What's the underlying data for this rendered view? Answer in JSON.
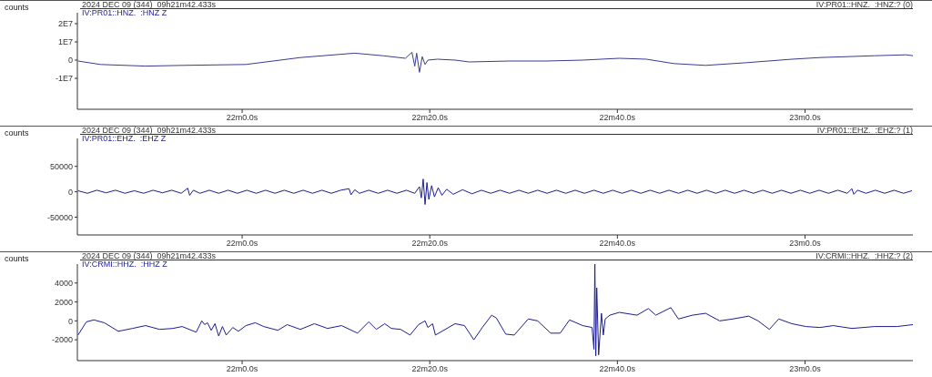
{
  "chart_data": [
    {
      "type": "line",
      "title": "2024 DEC 09 (344)  09h21m42.433s",
      "subtitle": "IV:PR01::HNZ.  :HNZ Z",
      "ylabel": "counts",
      "annotations": [
        "IV:PR01::HNZ.  :HNZ:? (0)"
      ],
      "line_style": "solid",
      "xlim": [
        "2024-12-09T09:21:42.433",
        "2024-12-09T09:23:11.5"
      ],
      "xticks": [
        {
          "value": "2024-12-09T09:22:00",
          "label": "22m0.0s"
        },
        {
          "value": "2024-12-09T09:22:20",
          "label": "22m20.0s"
        },
        {
          "value": "2024-12-09T09:22:40",
          "label": "22m40.0s"
        },
        {
          "value": "2024-12-09T09:23:00",
          "label": "23m0.0s"
        }
      ],
      "ylim": [
        -27000000,
        26000000
      ],
      "yticks": [
        {
          "value": 20000000,
          "label": "2E7"
        },
        {
          "value": 10000000,
          "label": "1E7"
        },
        0,
        {
          "value": -10000000,
          "label": "-1E7"
        }
      ],
      "x": [
        "2024-12-09T09:21:42.5",
        "2024-12-09T09:21:44.9",
        "2024-12-09T09:21:49.7",
        "2024-12-09T09:21:53.6",
        "2024-12-09T09:22:00.4",
        "2024-12-09T09:22:06.2",
        "2024-12-09T09:22:12.0",
        "2024-12-09T09:22:15.0",
        "2024-12-09T09:22:17.4",
        "2024-12-09T09:22:18.1",
        "2024-12-09T09:22:18.4",
        "2024-12-09T09:22:18.6",
        "2024-12-09T09:22:18.9",
        "2024-12-09T09:22:19.2",
        "2024-12-09T09:22:19.5",
        "2024-12-09T09:22:19.8",
        "2024-12-09T09:22:20.8",
        "2024-12-09T09:22:22.7",
        "2024-12-09T09:22:24.2",
        "2024-12-09T09:22:28.5",
        "2024-12-09T09:22:32.4",
        "2024-12-09T09:22:36.3",
        "2024-12-09T09:22:40.2",
        "2024-12-09T09:22:43.1",
        "2024-12-09T09:22:46.0",
        "2024-12-09T09:22:49.4",
        "2024-12-09T09:22:53.8",
        "2024-12-09T09:22:58.6",
        "2024-12-09T09:23:01.6",
        "2024-12-09T09:23:07.4",
        "2024-12-09T09:23:10.8",
        "2024-12-09T09:23:11.5"
      ],
      "series": [
        {
          "color": "#3b3b8f",
          "values": [
            -500000,
            -2400000,
            -3300000,
            -2900000,
            -2400000,
            1400000,
            3800000,
            2400000,
            1000000,
            4300000,
            -3300000,
            3800000,
            -6700000,
            1900000,
            -2400000,
            0,
            500000,
            0,
            -1000000,
            -500000,
            -500000,
            0,
            1000000,
            500000,
            -1900000,
            -2900000,
            -1400000,
            500000,
            1400000,
            2400000,
            2900000,
            2400000
          ]
        }
      ]
    },
    {
      "type": "line",
      "title": "2024 DEC 09 (344)  09h21m42.433s",
      "subtitle": "IV:PR01::EHZ.  :EHZ Z",
      "ylabel": "counts",
      "annotations": [
        "IV:PR01::EHZ.  :EHZ:? (1)"
      ],
      "line_style": "solid",
      "xlim": [
        "2024-12-09T09:21:42.433",
        "2024-12-09T09:23:11.5"
      ],
      "xticks": [
        {
          "value": "2024-12-09T09:22:00",
          "label": "22m0.0s"
        },
        {
          "value": "2024-12-09T09:22:20",
          "label": "22m20.0s"
        },
        {
          "value": "2024-12-09T09:22:40",
          "label": "22m40.0s"
        },
        {
          "value": "2024-12-09T09:23:00",
          "label": "23m0.0s"
        }
      ],
      "ylim": [
        -85000,
        105000
      ],
      "yticks": [
        50000,
        0,
        -50000
      ],
      "x": [
        "2024-12-09T09:21:42.5",
        "2024-12-09T09:21:43.5",
        "2024-12-09T09:21:44.5",
        "2024-12-09T09:21:45.5",
        "2024-12-09T09:21:46.5",
        "2024-12-09T09:21:47.5",
        "2024-12-09T09:21:48.5",
        "2024-12-09T09:21:49.5",
        "2024-12-09T09:21:50.5",
        "2024-12-09T09:21:51.5",
        "2024-12-09T09:21:52.5",
        "2024-12-09T09:21:53.5",
        "2024-12-09T09:21:54.2",
        "2024-12-09T09:21:54.4",
        "2024-12-09T09:21:54.8",
        "2024-12-09T09:21:55.5",
        "2024-12-09T09:21:56.5",
        "2024-12-09T09:21:57.5",
        "2024-12-09T09:21:58.5",
        "2024-12-09T09:21:59.5",
        "2024-12-09T09:22:00.5",
        "2024-12-09T09:22:01.5",
        "2024-12-09T09:22:02.5",
        "2024-12-09T09:22:03.5",
        "2024-12-09T09:22:04.5",
        "2024-12-09T09:22:05.5",
        "2024-12-09T09:22:06.5",
        "2024-12-09T09:22:07.5",
        "2024-12-09T09:22:08.5",
        "2024-12-09T09:22:09.5",
        "2024-12-09T09:22:10.5",
        "2024-12-09T09:22:11.4",
        "2024-12-09T09:22:11.6",
        "2024-12-09T09:22:12.0",
        "2024-12-09T09:22:12.5",
        "2024-12-09T09:22:13.5",
        "2024-12-09T09:22:14.5",
        "2024-12-09T09:22:15.5",
        "2024-12-09T09:22:16.5",
        "2024-12-09T09:22:17.5",
        "2024-12-09T09:22:18.4",
        "2024-12-09T09:22:18.9",
        "2024-12-09T09:22:19.1",
        "2024-12-09T09:22:19.3",
        "2024-12-09T09:22:19.5",
        "2024-12-09T09:22:19.7",
        "2024-12-09T09:22:19.9",
        "2024-12-09T09:22:20.2",
        "2024-12-09T09:22:20.5",
        "2024-12-09T09:22:20.9",
        "2024-12-09T09:22:21.3",
        "2024-12-09T09:22:21.8",
        "2024-12-09T09:22:22.5",
        "2024-12-09T09:22:23.5",
        "2024-12-09T09:22:24.5",
        "2024-12-09T09:22:25.5",
        "2024-12-09T09:22:26.5",
        "2024-12-09T09:22:27.5",
        "2024-12-09T09:22:28.5",
        "2024-12-09T09:22:29.5",
        "2024-12-09T09:22:30.5",
        "2024-12-09T09:22:31.5",
        "2024-12-09T09:22:32.5",
        "2024-12-09T09:22:33.5",
        "2024-12-09T09:22:34.5",
        "2024-12-09T09:22:35.5",
        "2024-12-09T09:22:36.5",
        "2024-12-09T09:22:37.5",
        "2024-12-09T09:22:38.5",
        "2024-12-09T09:22:39.5",
        "2024-12-09T09:22:40.5",
        "2024-12-09T09:22:41.5",
        "2024-12-09T09:22:42.5",
        "2024-12-09T09:22:43.5",
        "2024-12-09T09:22:44.5",
        "2024-12-09T09:22:45.5",
        "2024-12-09T09:22:46.5",
        "2024-12-09T09:22:47.5",
        "2024-12-09T09:22:48.5",
        "2024-12-09T09:22:49.5",
        "2024-12-09T09:22:50.5",
        "2024-12-09T09:22:51.5",
        "2024-12-09T09:22:52.5",
        "2024-12-09T09:22:53.5",
        "2024-12-09T09:22:54.5",
        "2024-12-09T09:22:55.5",
        "2024-12-09T09:22:56.5",
        "2024-12-09T09:22:57.5",
        "2024-12-09T09:22:58.5",
        "2024-12-09T09:22:59.5",
        "2024-12-09T09:23:00.5",
        "2024-12-09T09:23:01.5",
        "2024-12-09T09:23:02.5",
        "2024-12-09T09:23:03.5",
        "2024-12-09T09:23:04.5",
        "2024-12-09T09:23:05.0",
        "2024-12-09T09:23:05.2",
        "2024-12-09T09:23:05.6",
        "2024-12-09T09:23:06.5",
        "2024-12-09T09:23:07.5",
        "2024-12-09T09:23:08.5",
        "2024-12-09T09:23:09.5",
        "2024-12-09T09:23:10.5",
        "2024-12-09T09:23:11.4"
      ],
      "series": [
        {
          "color": "#1c1c94",
          "values": [
            2000,
            -3000,
            3000,
            -2000,
            3000,
            -3000,
            2000,
            -3000,
            3000,
            -2000,
            3000,
            -3000,
            7000,
            -7000,
            3000,
            -3000,
            3000,
            -3000,
            3000,
            -3000,
            3000,
            -3000,
            3000,
            -3000,
            3000,
            -3000,
            3000,
            -3000,
            3000,
            -3000,
            3000,
            6000,
            -6000,
            4000,
            -3000,
            3000,
            -3000,
            3000,
            -3000,
            3000,
            -3000,
            10000,
            -12000,
            25000,
            -25000,
            18000,
            -15000,
            12000,
            -10000,
            8000,
            -7000,
            5000,
            -5000,
            4000,
            -4000,
            3000,
            -3000,
            3000,
            -3000,
            3000,
            -3000,
            3000,
            -3000,
            3000,
            -3000,
            3000,
            -3000,
            3000,
            -3000,
            3000,
            -3000,
            3000,
            -3000,
            3000,
            -3000,
            3000,
            -3000,
            3000,
            -3000,
            3000,
            -3000,
            3000,
            -3000,
            3000,
            -3000,
            3000,
            -3000,
            3000,
            -3000,
            3000,
            -3000,
            3000,
            -3000,
            3000,
            -3000,
            6000,
            -5000,
            3000,
            -3000,
            3000,
            -3000,
            3000,
            -3000,
            2000
          ]
        }
      ]
    },
    {
      "type": "line",
      "title": "2024 DEC 09 (344)  09h21m42.433s",
      "subtitle": "IV:CRMI::HHZ.  :HHZ Z",
      "ylabel": "counts",
      "annotations": [
        "IV:CRMI::HHZ.  :HHZ:? (2)"
      ],
      "line_style": "solid",
      "xlim": [
        "2024-12-09T09:21:42.433",
        "2024-12-09T09:23:11.5"
      ],
      "xticks": [
        {
          "value": "2024-12-09T09:22:00",
          "label": "22m0.0s"
        },
        {
          "value": "2024-12-09T09:22:20",
          "label": "22m20.0s"
        },
        {
          "value": "2024-12-09T09:22:40",
          "label": "22m40.0s"
        },
        {
          "value": "2024-12-09T09:23:00",
          "label": "23m0.0s"
        }
      ],
      "ylim": [
        -4200,
        6000
      ],
      "yticks": [
        4000,
        2000,
        0,
        -2000
      ],
      "x": [
        "2024-12-09T09:21:42.5",
        "2024-12-09T09:21:43.4",
        "2024-12-09T09:21:44.2",
        "2024-12-09T09:21:45.3",
        "2024-12-09T09:21:46.8",
        "2024-12-09T09:21:48.3",
        "2024-12-09T09:21:49.7",
        "2024-12-09T09:21:51.2",
        "2024-12-09T09:21:52.6",
        "2024-12-09T09:21:53.6",
        "2024-12-09T09:21:55.1",
        "2024-12-09T09:21:55.7",
        "2024-12-09T09:21:56.0",
        "2024-12-09T09:21:56.3",
        "2024-12-09T09:21:56.7",
        "2024-12-09T09:21:57.1",
        "2024-12-09T09:21:57.5",
        "2024-12-09T09:21:57.9",
        "2024-12-09T09:21:58.3",
        "2024-12-09T09:21:59.0",
        "2024-12-09T09:21:59.6",
        "2024-12-09T09:22:00.4",
        "2024-12-09T09:22:01.4",
        "2024-12-09T09:22:02.3",
        "2024-12-09T09:22:03.8",
        "2024-12-09T09:22:04.8",
        "2024-12-09T09:22:06.2",
        "2024-12-09T09:22:07.7",
        "2024-12-09T09:22:09.1",
        "2024-12-09T09:22:10.6",
        "2024-12-09T09:22:12.3",
        "2024-12-09T09:22:13.5",
        "2024-12-09T09:22:14.3",
        "2024-12-09T09:22:15.2",
        "2024-12-09T09:22:15.9",
        "2024-12-09T09:22:16.9",
        "2024-12-09T09:22:17.9",
        "2024-12-09T09:22:18.8",
        "2024-12-09T09:22:19.5",
        "2024-12-09T09:22:19.8",
        "2024-12-09T09:22:20.3",
        "2024-12-09T09:22:20.6",
        "2024-12-09T09:22:22.7",
        "2024-12-09T09:22:23.7",
        "2024-12-09T09:22:24.7",
        "2024-12-09T09:22:25.6",
        "2024-12-09T09:22:26.6",
        "2024-12-09T09:22:27.1",
        "2024-12-09T09:22:28.1",
        "2024-12-09T09:22:29.0",
        "2024-12-09T09:22:30.5",
        "2024-12-09T09:22:31.5",
        "2024-12-09T09:22:32.9",
        "2024-12-09T09:22:33.9",
        "2024-12-09T09:22:34.9",
        "2024-12-09T09:22:36.3",
        "2024-12-09T09:22:37.3",
        "2024-12-09T09:22:37.5",
        "2024-12-09T09:22:37.6",
        "2024-12-09T09:22:37.7",
        "2024-12-09T09:22:37.8",
        "2024-12-09T09:22:38.0",
        "2024-12-09T09:22:38.3",
        "2024-12-09T09:22:38.5",
        "2024-12-09T09:22:38.7",
        "2024-12-09T09:22:39.2",
        "2024-12-09T09:22:40.2",
        "2024-12-09T09:22:42.1",
        "2024-12-09T09:22:43.3",
        "2024-12-09T09:22:44.1",
        "2024-12-09T09:22:45.7",
        "2024-12-09T09:22:46.5",
        "2024-12-09T09:22:48.0",
        "2024-12-09T09:22:49.4",
        "2024-12-09T09:22:50.9",
        "2024-12-09T09:22:52.3",
        "2024-12-09T09:22:54.0",
        "2024-12-09T09:22:55.0",
        "2024-12-09T09:22:56.2",
        "2024-12-09T09:22:57.2",
        "2024-12-09T09:22:58.6",
        "2024-12-09T09:23:00.1",
        "2024-12-09T09:23:01.6",
        "2024-12-09T09:23:03.0",
        "2024-12-09T09:23:05.0",
        "2024-12-09T09:23:07.4",
        "2024-12-09T09:23:09.8",
        "2024-12-09T09:23:11.5"
      ],
      "series": [
        {
          "color": "#1c1c94",
          "values": [
            -1500,
            -100,
            100,
            -200,
            -1100,
            -800,
            -500,
            -900,
            -800,
            -600,
            -1200,
            0,
            -400,
            -200,
            -1000,
            -300,
            -1600,
            -600,
            -1500,
            -700,
            -1100,
            -500,
            -200,
            -600,
            -1000,
            -400,
            -900,
            -300,
            -800,
            -500,
            -1300,
            -100,
            -900,
            -300,
            -800,
            -900,
            -1500,
            -400,
            0,
            -700,
            -300,
            -1500,
            -300,
            -500,
            -2000,
            -700,
            600,
            300,
            -1400,
            -1500,
            200,
            0,
            -1300,
            -1300,
            100,
            -500,
            -700,
            -3000,
            6000,
            -3700,
            3500,
            -3600,
            800,
            -1500,
            200,
            600,
            900,
            600,
            1300,
            600,
            1400,
            200,
            600,
            800,
            0,
            200,
            500,
            0,
            -900,
            200,
            -300,
            -600,
            -700,
            -500,
            -800,
            -600,
            -600,
            -400
          ]
        }
      ]
    }
  ]
}
